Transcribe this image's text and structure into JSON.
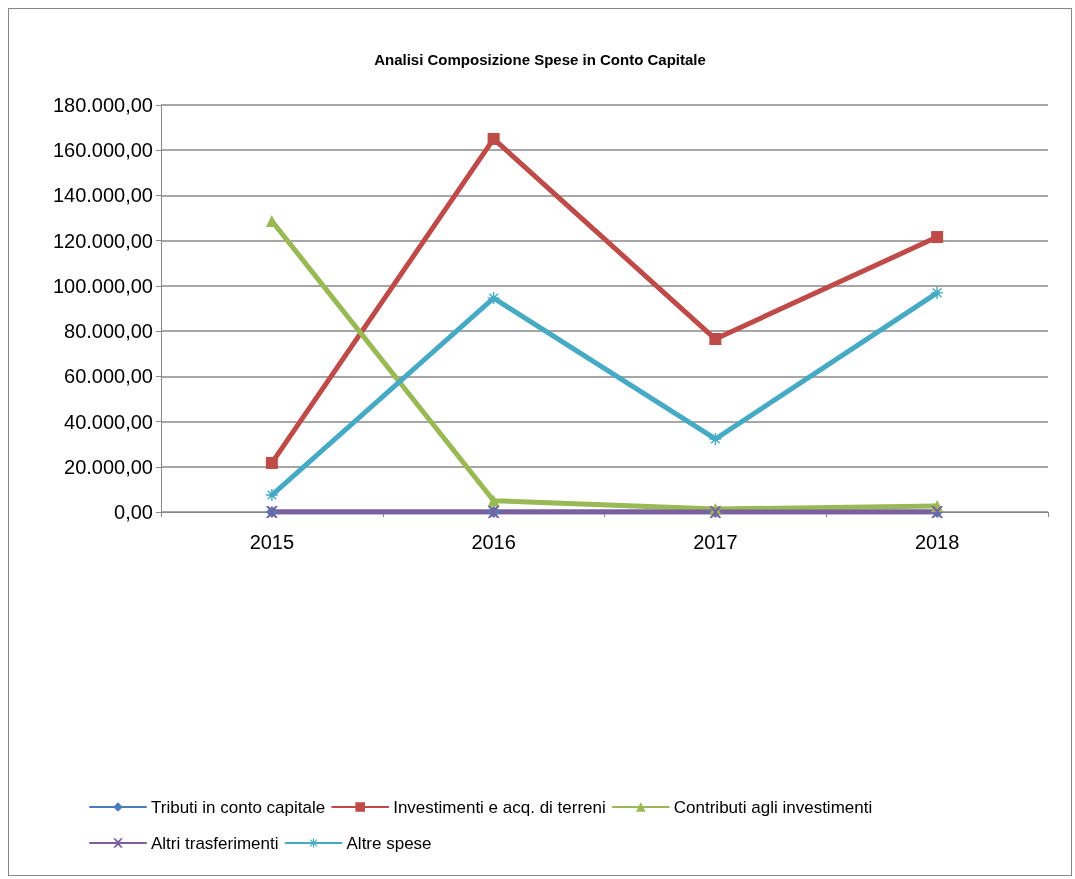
{
  "chart_data": {
    "type": "line",
    "title": "Analisi Composizione Spese in Conto Capitale",
    "categories": [
      "2015",
      "2016",
      "2017",
      "2018"
    ],
    "series": [
      {
        "name": "Tributi in conto capitale",
        "color": "#4a7ebb",
        "marker": "diamond",
        "values": [
          0,
          0,
          0,
          0
        ]
      },
      {
        "name": "Investimenti e acq. di terreni",
        "color": "#be4b48",
        "marker": "square",
        "values": [
          21700,
          165000,
          76500,
          121600
        ]
      },
      {
        "name": "Contributi agli investimenti",
        "color": "#98b954",
        "marker": "triangle",
        "values": [
          128700,
          5000,
          1300,
          2700
        ]
      },
      {
        "name": "Altri trasferimenti",
        "color": "#7d5fa0",
        "marker": "cross",
        "values": [
          0,
          0,
          0,
          0
        ]
      },
      {
        "name": "Altre spese",
        "color": "#46aac5",
        "marker": "star",
        "values": [
          7500,
          94600,
          32300,
          96900
        ]
      }
    ],
    "ylim": [
      0,
      180000
    ],
    "yticks": [
      {
        "value": 0,
        "label": "0,00"
      },
      {
        "value": 20000,
        "label": "20.000,00"
      },
      {
        "value": 40000,
        "label": "40.000,00"
      },
      {
        "value": 60000,
        "label": "60.000,00"
      },
      {
        "value": 80000,
        "label": "80.000,00"
      },
      {
        "value": 100000,
        "label": "100.000,00"
      },
      {
        "value": 120000,
        "label": "120.000,00"
      },
      {
        "value": 140000,
        "label": "140.000,00"
      },
      {
        "value": 160000,
        "label": "160.000,00"
      },
      {
        "value": 180000,
        "label": "180.000,00"
      }
    ],
    "grid": "y",
    "legend": "bottom",
    "line_style": "solid"
  }
}
